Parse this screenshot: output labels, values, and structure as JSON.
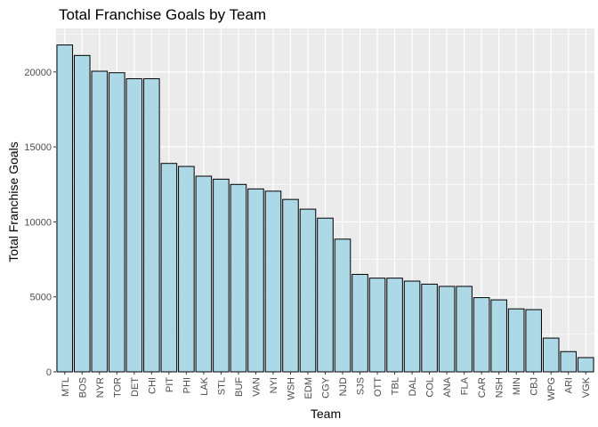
{
  "chart_data": {
    "type": "bar",
    "title": "Total Franchise Goals by Team",
    "xlabel": "Team",
    "ylabel": "Total Franchise Goals",
    "categories": [
      "MTL",
      "BOS",
      "NYR",
      "TOR",
      "DET",
      "CHI",
      "PIT",
      "PHI",
      "LAK",
      "STL",
      "BUF",
      "VAN",
      "NYI",
      "WSH",
      "EDM",
      "CGY",
      "NJD",
      "SJS",
      "OTT",
      "TBL",
      "DAL",
      "COL",
      "ANA",
      "FLA",
      "CAR",
      "NSH",
      "MIN",
      "CBJ",
      "WPG",
      "ARI",
      "VGK"
    ],
    "values": [
      21800,
      21100,
      20050,
      19950,
      19550,
      19550,
      13900,
      13700,
      13050,
      12850,
      12500,
      12200,
      12050,
      11500,
      10850,
      10250,
      8850,
      6500,
      6250,
      6250,
      6050,
      5850,
      5700,
      5700,
      4950,
      4800,
      4200,
      4150,
      2250,
      1350,
      950
    ],
    "ylim": [
      0,
      22900
    ],
    "yticks": [
      0,
      5000,
      10000,
      15000,
      20000
    ],
    "grid": true,
    "legend": "none",
    "colors": {
      "bar_fill": "#ADD8E6",
      "bar_stroke": "#000000",
      "panel_bg": "#EBEBEB",
      "grid_major": "#FFFFFF",
      "tick_text": "#4D4D4D",
      "tick_mark": "#333333"
    }
  }
}
